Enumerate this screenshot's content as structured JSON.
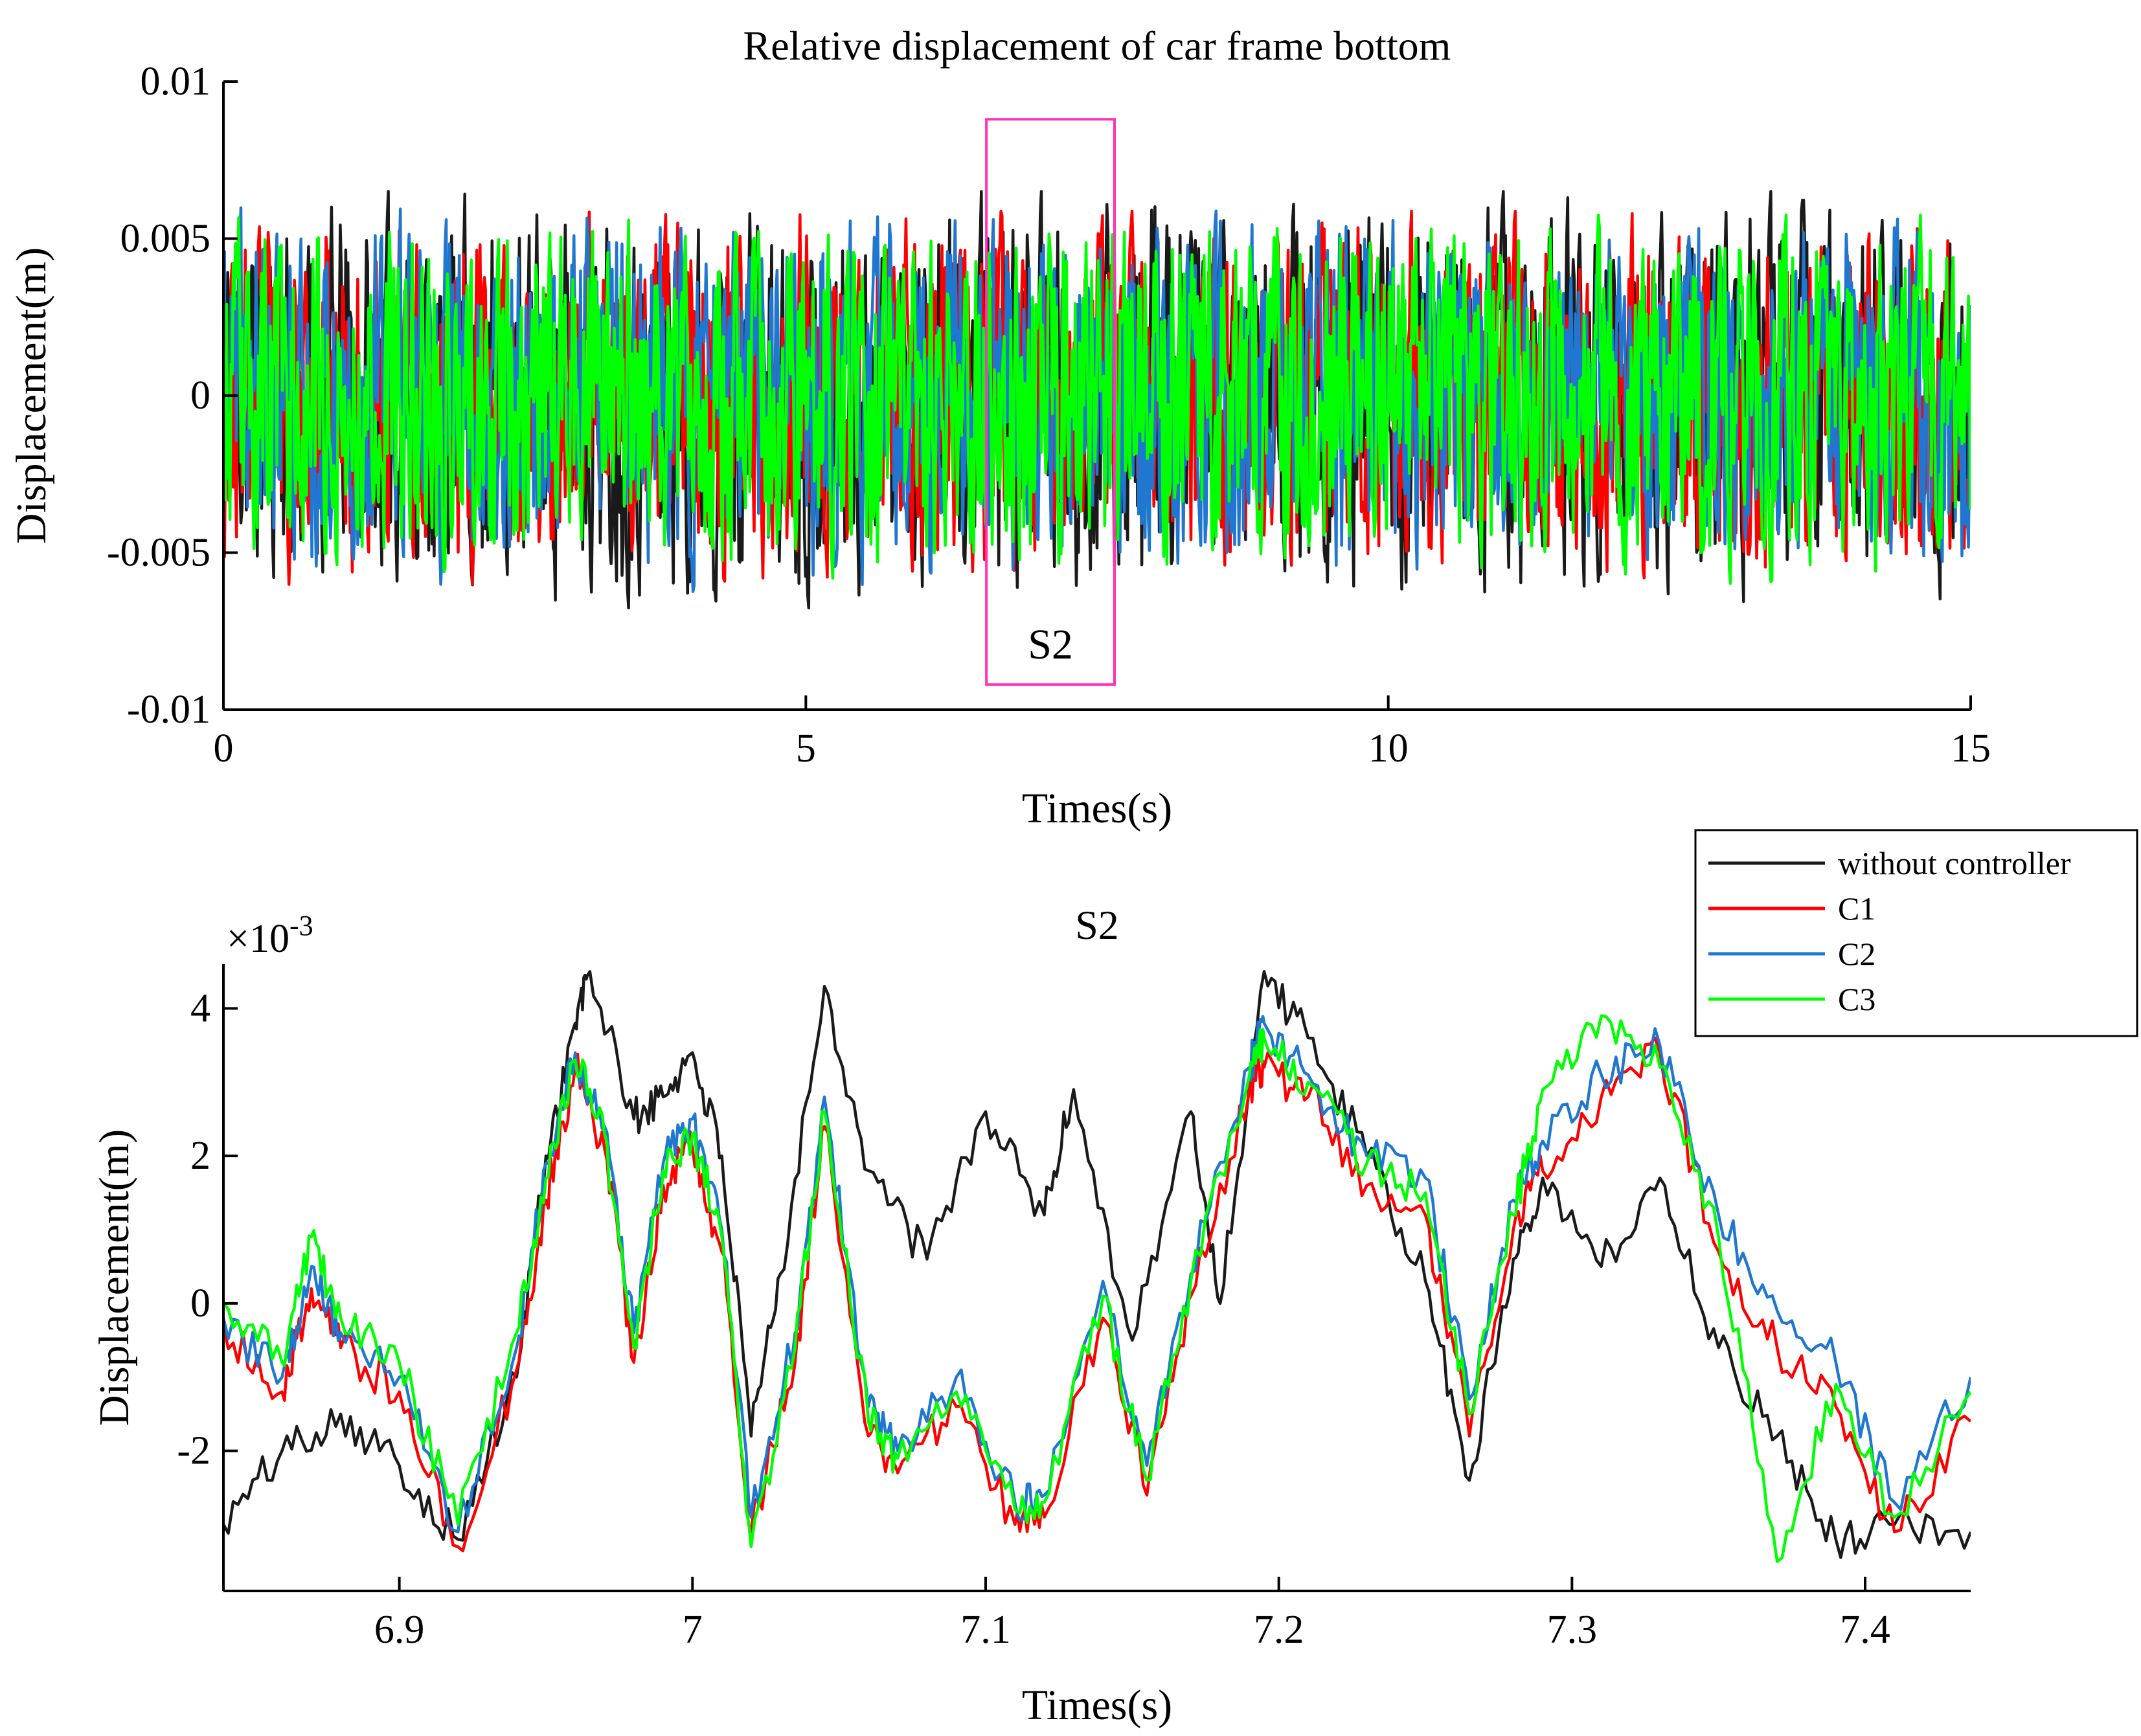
{
  "colors": {
    "without_controller": "#1a1a1a",
    "C1": "#ff0000",
    "C2": "#1f77d0",
    "C3": "#00ff00",
    "highlight_box": "#ff33bb"
  },
  "chart_data": [
    {
      "type": "line",
      "title": "Relative displacement of car frame bottom",
      "xlabel": "Times(s)",
      "ylabel": "Displacement(m)",
      "xlim": [
        0,
        15
      ],
      "ylim": [
        -0.01,
        0.01
      ],
      "xticks": [
        0,
        5,
        10,
        15
      ],
      "xtick_labels": [
        "0",
        "5",
        "10",
        "15"
      ],
      "yticks": [
        0.01,
        0.005,
        0,
        -0.005,
        -0.01
      ],
      "ytick_labels": [
        "0.01",
        "0.005",
        "0",
        "-0.005",
        "-0.01"
      ],
      "grid": false,
      "series": [
        {
          "name": "without controller",
          "amplitude": 0.0052,
          "seed": 11
        },
        {
          "name": "C1",
          "amplitude": 0.0047,
          "seed": 23
        },
        {
          "name": "C2",
          "amplitude": 0.0048,
          "seed": 37
        },
        {
          "name": "C3",
          "amplitude": 0.0046,
          "seed": 53
        }
      ],
      "annotation": {
        "label": "S2",
        "x_range": [
          6.55,
          7.65
        ],
        "y_range": [
          -0.0092,
          0.0088
        ]
      }
    },
    {
      "type": "line",
      "title": "S2",
      "xlabel": "Times(s)",
      "ylabel": "Displacement(m)",
      "y_exponent_label": "×10",
      "y_exponent_power": "-3",
      "xlim": [
        6.84,
        7.436
      ],
      "ylim": [
        -3.9,
        4.6
      ],
      "xticks": [
        6.9,
        7.0,
        7.1,
        7.2,
        7.3,
        7.4
      ],
      "xtick_labels": [
        "6.9",
        "7",
        "7.1",
        "7.2",
        "7.3",
        "7.4"
      ],
      "yticks": [
        4,
        2,
        0,
        -2
      ],
      "ytick_labels": [
        "4",
        "2",
        "0",
        "-2"
      ],
      "grid": false,
      "legend": {
        "position": "top-right",
        "entries": [
          "without controller",
          "C1",
          "C2",
          "C3"
        ]
      },
      "series": [
        {
          "name": "without controller",
          "x": [
            6.84,
            6.86,
            6.88,
            6.9,
            6.92,
            6.94,
            6.95,
            6.96,
            6.965,
            6.98,
            6.99,
            7.0,
            7.01,
            7.02,
            7.03,
            7.045,
            7.06,
            7.08,
            7.1,
            7.12,
            7.13,
            7.15,
            7.17,
            7.18,
            7.195,
            7.21,
            7.23,
            7.25,
            7.265,
            7.28,
            7.29,
            7.31,
            7.33,
            7.35,
            7.37,
            7.39,
            7.41,
            7.436
          ],
          "values": [
            -3.0,
            -2.0,
            -1.5,
            -2.2,
            -3.2,
            -1.0,
            2.0,
            3.8,
            4.5,
            2.5,
            2.8,
            3.4,
            2.0,
            -1.8,
            0.4,
            4.3,
            1.8,
            0.6,
            2.6,
            1.2,
            2.9,
            -0.5,
            2.6,
            0.0,
            4.5,
            3.6,
            2.0,
            0.3,
            -2.4,
            0.6,
            1.7,
            0.5,
            1.7,
            -0.6,
            -1.8,
            -3.2,
            -3.0,
            -3.1
          ]
        },
        {
          "name": "C1",
          "x": [
            6.84,
            6.86,
            6.87,
            6.88,
            6.9,
            6.92,
            6.94,
            6.95,
            6.96,
            6.97,
            6.98,
            6.99,
            7.0,
            7.01,
            7.02,
            7.035,
            7.045,
            7.06,
            7.07,
            7.09,
            7.11,
            7.12,
            7.14,
            7.155,
            7.17,
            7.19,
            7.195,
            7.21,
            7.23,
            7.25,
            7.265,
            7.28,
            7.29,
            7.31,
            7.33,
            7.35,
            7.37,
            7.39,
            7.41,
            7.436
          ],
          "values": [
            -0.3,
            -1.2,
            0.2,
            -0.6,
            -1.2,
            -3.3,
            -0.9,
            1.4,
            3.2,
            2.1,
            -0.8,
            1.6,
            2.1,
            0.7,
            -3.1,
            -0.8,
            2.4,
            -1.8,
            -2.3,
            -1.4,
            -3.0,
            -2.9,
            -0.2,
            -2.6,
            0.1,
            2.9,
            3.2,
            2.8,
            1.6,
            1.2,
            -1.8,
            1.0,
            1.8,
            2.8,
            3.4,
            0.7,
            -0.6,
            -1.4,
            -3.1,
            -1.6
          ]
        },
        {
          "name": "C2",
          "x": [
            6.84,
            6.86,
            6.87,
            6.88,
            6.9,
            6.92,
            6.94,
            6.95,
            6.96,
            6.97,
            6.98,
            6.99,
            7.0,
            7.01,
            7.02,
            7.035,
            7.045,
            7.06,
            7.07,
            7.09,
            7.11,
            7.12,
            7.14,
            7.155,
            7.17,
            7.19,
            7.195,
            7.21,
            7.23,
            7.25,
            7.265,
            7.28,
            7.29,
            7.31,
            7.33,
            7.35,
            7.37,
            7.39,
            7.41,
            7.436
          ],
          "values": [
            -0.2,
            -1.0,
            0.5,
            -0.4,
            -1.0,
            -3.1,
            -0.6,
            1.9,
            3.4,
            2.4,
            -0.4,
            1.9,
            2.5,
            1.0,
            -2.9,
            -0.4,
            2.8,
            -1.4,
            -2.0,
            -1.0,
            -2.7,
            -2.6,
            0.3,
            -2.2,
            0.4,
            3.2,
            3.8,
            3.1,
            2.0,
            1.7,
            -1.3,
            1.4,
            2.2,
            3.1,
            3.5,
            1.2,
            -0.1,
            -0.8,
            -2.7,
            -1.0
          ]
        },
        {
          "name": "C3",
          "x": [
            6.84,
            6.86,
            6.87,
            6.88,
            6.9,
            6.92,
            6.94,
            6.95,
            6.96,
            6.97,
            6.98,
            6.99,
            7.0,
            7.01,
            7.02,
            7.035,
            7.045,
            7.06,
            7.07,
            7.09,
            7.11,
            7.12,
            7.14,
            7.155,
            7.17,
            7.19,
            7.195,
            7.21,
            7.23,
            7.25,
            7.265,
            7.28,
            7.29,
            7.31,
            7.33,
            7.35,
            7.37,
            7.39,
            7.41,
            7.436
          ],
          "values": [
            0.0,
            -0.8,
            0.9,
            -0.2,
            -0.8,
            -3.0,
            -0.4,
            1.7,
            3.3,
            2.3,
            -0.6,
            1.8,
            2.3,
            0.9,
            -3.3,
            -0.6,
            2.6,
            -1.6,
            -2.1,
            -1.2,
            -2.8,
            -2.7,
            0.1,
            -2.4,
            0.3,
            3.1,
            3.6,
            3.0,
            1.9,
            1.5,
            -1.5,
            1.2,
            2.9,
            3.9,
            3.2,
            0.9,
            -3.5,
            -1.1,
            -2.9,
            -1.2
          ]
        }
      ]
    }
  ]
}
